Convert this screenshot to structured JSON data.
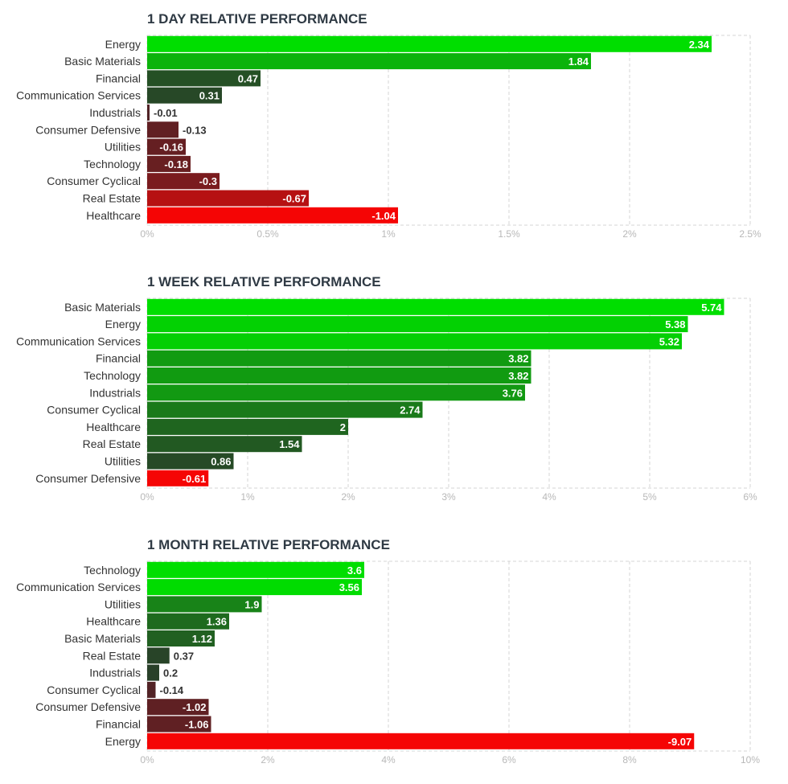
{
  "chart_data": [
    {
      "type": "bar",
      "orientation": "horizontal",
      "title": "1 DAY RELATIVE PERFORMANCE",
      "categories": [
        "Energy",
        "Basic Materials",
        "Financial",
        "Communication Services",
        "Industrials",
        "Consumer Defensive",
        "Utilities",
        "Technology",
        "Consumer Cyclical",
        "Real Estate",
        "Healthcare"
      ],
      "values": [
        2.34,
        1.84,
        0.47,
        0.31,
        -0.01,
        -0.13,
        -0.16,
        -0.18,
        -0.3,
        -0.67,
        -1.04
      ],
      "value_labels": [
        "2.34",
        "1.84",
        "0.47",
        "0.31",
        "-0.01",
        "-0.13",
        "-0.16",
        "-0.18",
        "-0.3",
        "-0.67",
        "-1.04"
      ],
      "xlim": [
        0,
        2.5
      ],
      "xticks": [
        "0%",
        "0.5%",
        "1%",
        "1.5%",
        "2%",
        "2.5%"
      ],
      "grid": true
    },
    {
      "type": "bar",
      "orientation": "horizontal",
      "title": "1 WEEK RELATIVE PERFORMANCE",
      "categories": [
        "Basic Materials",
        "Energy",
        "Communication Services",
        "Financial",
        "Technology",
        "Industrials",
        "Consumer Cyclical",
        "Healthcare",
        "Real Estate",
        "Utilities",
        "Consumer Defensive"
      ],
      "values": [
        5.74,
        5.38,
        5.32,
        3.82,
        3.82,
        3.76,
        2.74,
        2,
        1.54,
        0.86,
        -0.61
      ],
      "value_labels": [
        "5.74",
        "5.38",
        "5.32",
        "3.82",
        "3.82",
        "3.76",
        "2.74",
        "2",
        "1.54",
        "0.86",
        "-0.61"
      ],
      "xlim": [
        0,
        6
      ],
      "xticks": [
        "0%",
        "1%",
        "2%",
        "3%",
        "4%",
        "5%",
        "6%"
      ],
      "grid": true
    },
    {
      "type": "bar",
      "orientation": "horizontal",
      "title": "1 MONTH RELATIVE PERFORMANCE",
      "categories": [
        "Technology",
        "Communication Services",
        "Utilities",
        "Healthcare",
        "Basic Materials",
        "Real Estate",
        "Industrials",
        "Consumer Cyclical",
        "Consumer Defensive",
        "Financial",
        "Energy"
      ],
      "values": [
        3.6,
        3.56,
        1.9,
        1.36,
        1.12,
        0.37,
        0.2,
        -0.14,
        -1.02,
        -1.06,
        -9.07
      ],
      "value_labels": [
        "3.6",
        "3.56",
        "1.9",
        "1.36",
        "1.12",
        "0.37",
        "0.2",
        "-0.14",
        "-1.02",
        "-1.06",
        "-9.07"
      ],
      "xlim": [
        0,
        10
      ],
      "xticks": [
        "0%",
        "2%",
        "4%",
        "6%",
        "8%",
        "10%"
      ],
      "grid": true
    }
  ]
}
